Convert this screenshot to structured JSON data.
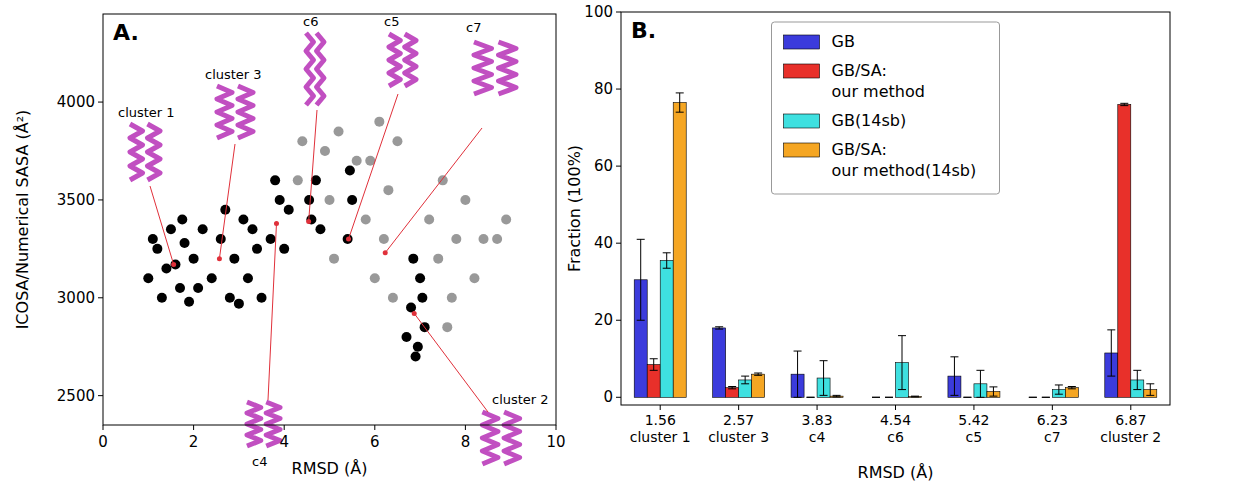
{
  "chart_data": [
    {
      "type": "scatter",
      "title": "A.",
      "xlabel": "RMSD (Å)",
      "ylabel": "ICOSA/Numerical SASA (Å²)",
      "xlim": [
        0,
        10
      ],
      "xticks": [
        0,
        2,
        4,
        6,
        8,
        10
      ],
      "ylim": [
        2350,
        4450
      ],
      "yticks": [
        2500,
        3000,
        3500,
        4000
      ],
      "series": [
        {
          "color": "#000000",
          "marker": "circle",
          "x": [
            1.0,
            1.2,
            1.3,
            1.5,
            1.6,
            1.7,
            1.8,
            1.9,
            2.0,
            2.2,
            1.4,
            1.1,
            2.1,
            1.75,
            2.4,
            2.6,
            2.8,
            2.9,
            3.1,
            3.2,
            3.4,
            3.5,
            2.7,
            3.0,
            3.3,
            3.7,
            3.9,
            4.0,
            4.1,
            3.8,
            4.6,
            4.7,
            4.8,
            4.55,
            5.4,
            5.5,
            5.45,
            6.7,
            6.8,
            6.9,
            7.0,
            7.1,
            6.85,
            6.95,
            7.05
          ],
          "values": [
            3100,
            3250,
            3000,
            3350,
            3170,
            3050,
            3280,
            2980,
            3200,
            3350,
            3150,
            3300,
            3050,
            3400,
            3100,
            3300,
            3000,
            3200,
            3400,
            3100,
            3250,
            3000,
            3450,
            2970,
            3350,
            3300,
            3500,
            3250,
            3450,
            3600,
            3400,
            3600,
            3350,
            3500,
            3300,
            3500,
            3650,
            2800,
            2950,
            2700,
            3100,
            2850,
            3200,
            2750,
            3000
          ]
        },
        {
          "color": "#999999",
          "marker": "circle",
          "x": [
            4.3,
            4.4,
            5.0,
            5.1,
            5.8,
            5.9,
            6.0,
            6.2,
            6.3,
            6.5,
            7.2,
            7.4,
            7.5,
            7.7,
            7.8,
            8.0,
            8.2,
            8.4,
            8.7,
            8.9,
            6.4,
            5.2,
            6.1,
            7.6,
            4.9,
            5.6
          ],
          "values": [
            3600,
            3800,
            3500,
            3200,
            3400,
            3700,
            3100,
            3300,
            3550,
            3800,
            3400,
            3200,
            3600,
            3000,
            3300,
            3500,
            3100,
            3300,
            3300,
            3400,
            3000,
            3850,
            3900,
            2850,
            3750,
            3700
          ]
        }
      ],
      "annotations": [
        {
          "text": "cluster 1",
          "x": 1.56,
          "y": 3170
        },
        {
          "text": "cluster 3",
          "x": 2.57,
          "y": 3200
        },
        {
          "text": "c4",
          "x": 3.83,
          "y": 3380
        },
        {
          "text": "c6",
          "x": 4.54,
          "y": 3390
        },
        {
          "text": "c5",
          "x": 5.42,
          "y": 3300
        },
        {
          "text": "c7",
          "x": 6.23,
          "y": 3230
        },
        {
          "text": "cluster 2",
          "x": 6.87,
          "y": 2920
        }
      ]
    },
    {
      "type": "bar",
      "title": "B.",
      "xlabel": "RMSD (Å)",
      "ylabel": "Fraction (100%)",
      "categories": [
        "1.56",
        "2.57",
        "3.83",
        "4.54",
        "5.42",
        "6.23",
        "6.87"
      ],
      "category_names": [
        "cluster 1",
        "cluster 3",
        "c4",
        "c6",
        "c5",
        "c7",
        "cluster 2"
      ],
      "ylim": [
        -2,
        100
      ],
      "yticks": [
        0,
        20,
        40,
        60,
        80,
        100
      ],
      "legend": "top",
      "series": [
        {
          "name": "GB",
          "color": "#3b3bdc",
          "values": [
            30.5,
            18,
            6,
            0,
            5.5,
            0,
            11.5
          ],
          "errors": [
            10.5,
            0.3,
            6,
            0,
            5,
            0,
            6
          ]
        },
        {
          "name": "GB/SA:\nour method",
          "color": "#e8302a",
          "values": [
            8.5,
            2.5,
            0,
            0,
            0,
            0,
            76
          ],
          "errors": [
            1.5,
            0.3,
            0,
            0,
            0,
            0,
            0.3
          ]
        },
        {
          "name": "GB(14sb)",
          "color": "#3ee0e0",
          "values": [
            35.5,
            4.5,
            5,
            9,
            3.5,
            2,
            4.5
          ],
          "errors": [
            2,
            1,
            4.5,
            7,
            3.5,
            1.2,
            2.5
          ]
        },
        {
          "name": "GB/SA:\nour method(14sb)",
          "color": "#f5a623",
          "values": [
            76.5,
            6,
            0.3,
            0.2,
            1.5,
            2.5,
            2
          ],
          "errors": [
            2.5,
            0.3,
            0.2,
            0.1,
            1.2,
            0.3,
            1.5
          ]
        }
      ]
    }
  ]
}
